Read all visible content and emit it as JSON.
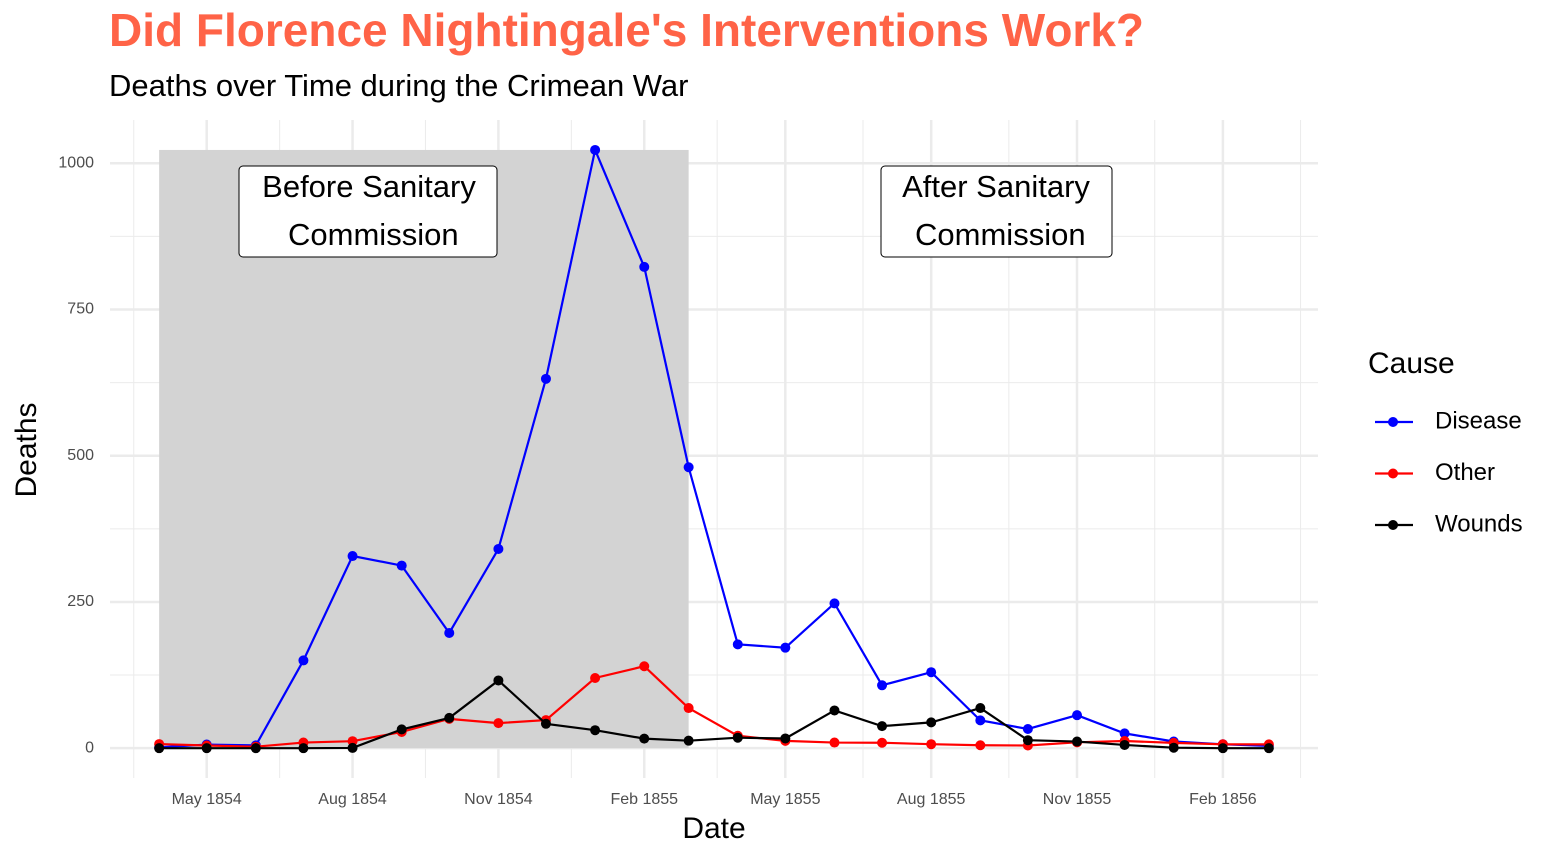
{
  "chart_data": {
    "type": "line",
    "title": "Did Florence Nightingale's Interventions Work?",
    "subtitle": "Deaths over Time during the Crimean War",
    "x_label": "Date",
    "y_label": "Deaths",
    "legend_title": "Cause",
    "x": [
      "1854-04",
      "1854-05",
      "1854-06",
      "1854-07",
      "1854-08",
      "1854-09",
      "1854-10",
      "1854-11",
      "1854-12",
      "1855-01",
      "1855-02",
      "1855-03",
      "1855-04",
      "1855-05",
      "1855-06",
      "1855-07",
      "1855-08",
      "1855-09",
      "1855-10",
      "1855-11",
      "1855-12",
      "1856-01",
      "1856-02",
      "1856-03"
    ],
    "series": [
      {
        "name": "Disease",
        "color": "#0000ff",
        "values": [
          1.4,
          6.2,
          4.7,
          150,
          328.5,
          312.2,
          197,
          340.6,
          631.5,
          1022.8,
          822.8,
          480.3,
          177.5,
          171.8,
          247.6,
          107.5,
          129.9,
          47.5,
          32.8,
          56.4,
          25.3,
          11.4,
          6.6,
          3.9
        ]
      },
      {
        "name": "Other",
        "color": "#ff0000",
        "values": [
          7,
          4.6,
          2.5,
          9.6,
          11.9,
          27.7,
          50.1,
          42.8,
          48,
          120,
          140.1,
          68.6,
          21.2,
          12.5,
          9.6,
          9.3,
          6.8,
          5,
          4.6,
          10,
          12.3,
          9,
          6.6,
          6.5
        ]
      },
      {
        "name": "Wounds",
        "color": "#000000",
        "values": [
          0,
          0,
          0,
          0,
          0.4,
          32.1,
          51.7,
          115.8,
          41.7,
          30.7,
          16.3,
          12.8,
          17.9,
          16.6,
          64.5,
          37.7,
          44.1,
          68.6,
          13.6,
          11.3,
          5.5,
          0.8,
          0,
          0
        ]
      }
    ],
    "shade": {
      "xmin": "1854-04",
      "xmax": "1855-03",
      "ymin": 0,
      "ymax": 1022.8,
      "color": "#d3d3d3"
    },
    "annotations": [
      {
        "lines": [
          "Before Sanitary",
          " Commission"
        ]
      },
      {
        "lines": [
          "After Sanitary",
          " Commission"
        ]
      }
    ],
    "xlim": [
      "1854-03",
      "1856-04"
    ],
    "xticks": [
      {
        "value": "1854-05",
        "label": "May 1854"
      },
      {
        "value": "1854-08",
        "label": "Aug 1854"
      },
      {
        "value": "1854-11",
        "label": "Nov 1854"
      },
      {
        "value": "1855-02",
        "label": "Feb 1855"
      },
      {
        "value": "1855-05",
        "label": "May 1855"
      },
      {
        "value": "1855-08",
        "label": "Aug 1855"
      },
      {
        "value": "1855-11",
        "label": "Nov 1855"
      },
      {
        "value": "1856-02",
        "label": "Feb 1856"
      }
    ],
    "ylim": [
      -51,
      1074
    ],
    "yticks": [
      0,
      250,
      500,
      750,
      1000
    ],
    "grid": true
  }
}
